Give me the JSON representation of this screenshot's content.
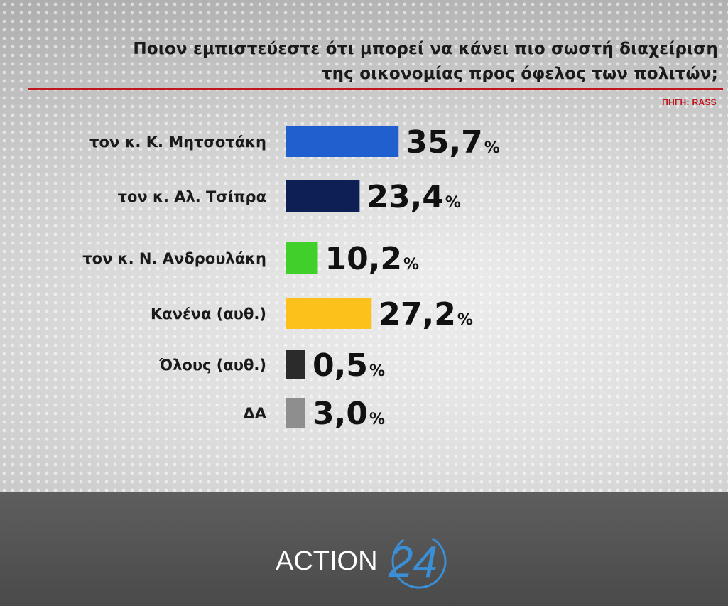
{
  "header": {
    "title_line1": "Ποιον εμπιστεύεστε ότι μπορεί να κάνει πιο σωστή διαχείριση",
    "title_line2": "της οικονομίας προς όφελος των πολιτών;",
    "source": "ΠΗΓΗ: RASS"
  },
  "chart_data": {
    "type": "bar",
    "orientation": "horizontal",
    "title": "Ποιον εμπιστεύεστε ότι μπορεί να κάνει πιο σωστή διαχείριση της οικονομίας προς όφελος των πολιτών;",
    "categories": [
      "τον κ. Κ. Μητσοτάκη",
      "τον κ. Αλ. Τσίπρα",
      "τον κ. Ν. Ανδρουλάκη",
      "Κανένα (αυθ.)",
      "Όλους (αυθ.)",
      "ΔΑ"
    ],
    "values": [
      35.7,
      23.4,
      10.2,
      27.2,
      0.5,
      3.0
    ],
    "value_labels": [
      "35,7",
      "23,4",
      "10,2",
      "27,2",
      "0,5",
      "3,0"
    ],
    "unit": "%",
    "colors": [
      "#1f5fce",
      "#0d1f55",
      "#3fd12a",
      "#fcc11a",
      "#2b2b2b",
      "#8e8e8e"
    ],
    "grid": false,
    "legend": "none"
  },
  "footer": {
    "brand_text": "ACTION",
    "brand_number": "24",
    "accent": "#3a8fd6"
  }
}
